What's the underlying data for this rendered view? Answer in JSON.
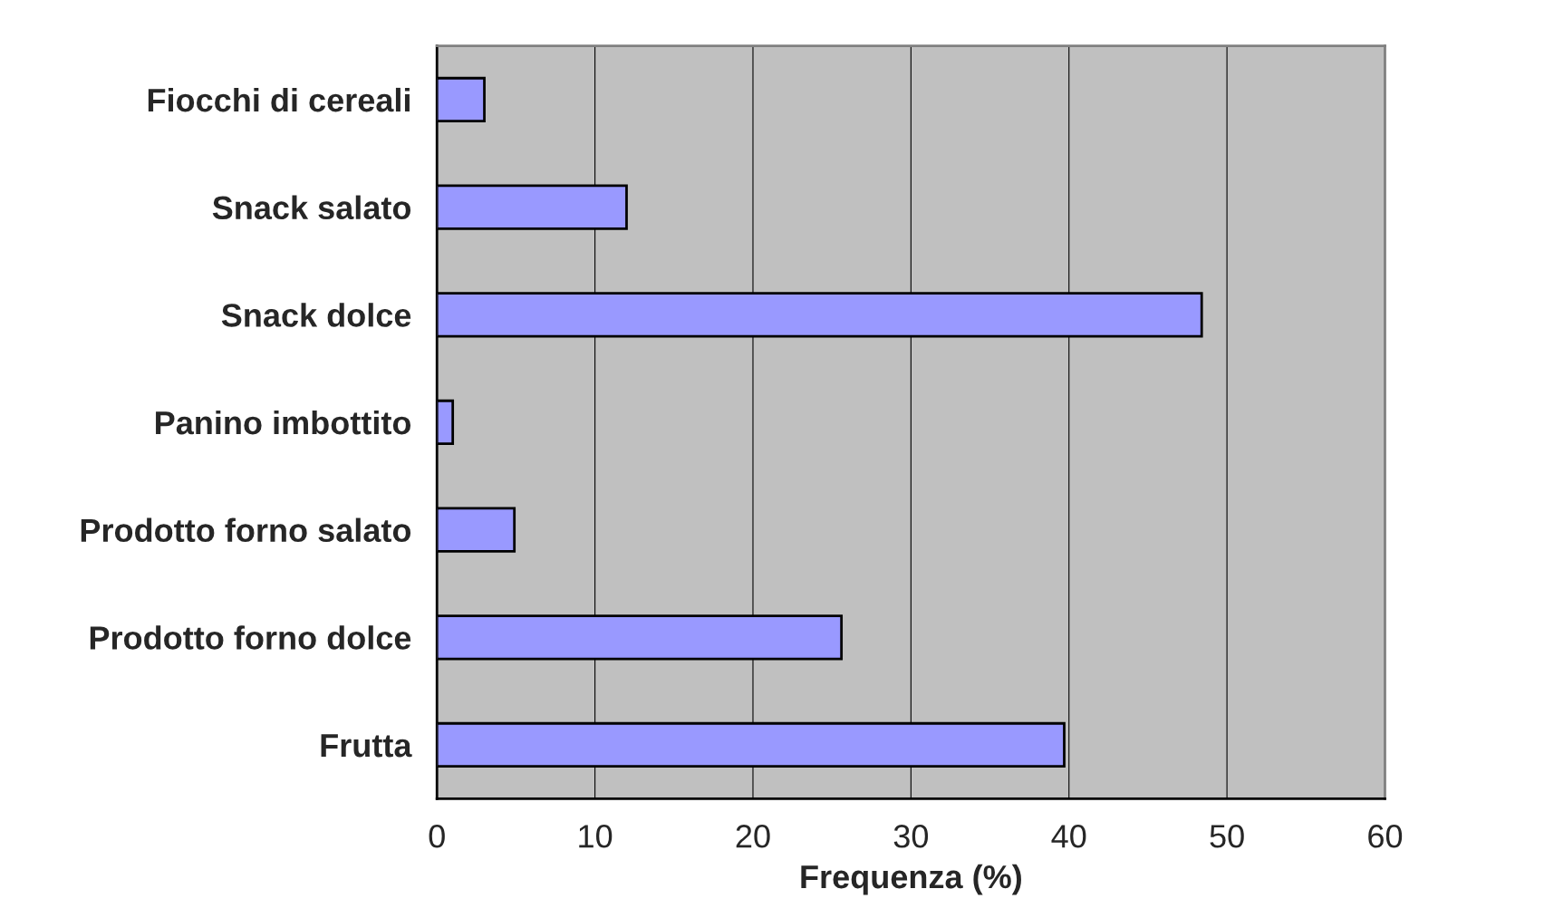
{
  "chart_data": {
    "type": "bar",
    "orientation": "horizontal",
    "xlabel": "Frequenza (%)",
    "categories": [
      "Fiocchi di cereali",
      "Snack salato",
      "Snack dolce",
      "Panino imbottito",
      "Prodotto forno salato",
      "Prodotto forno dolce",
      "Frutta"
    ],
    "values": [
      3.0,
      12.0,
      48.4,
      1.0,
      4.9,
      25.6,
      39.7
    ],
    "color": "#9999ff",
    "xlim": [
      0,
      60
    ],
    "xticks": [
      0,
      10,
      20,
      30,
      40,
      50,
      60
    ],
    "grid": "x"
  }
}
